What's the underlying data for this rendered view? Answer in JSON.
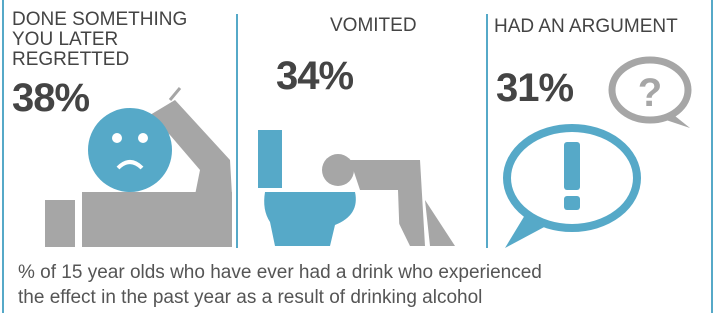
{
  "panels": [
    {
      "label_lines": [
        "DONE SOMETHING",
        "YOU LATER",
        "REGRETTED"
      ],
      "value": "38%"
    },
    {
      "label_lines": [
        "VOMITED"
      ],
      "value": "34%"
    },
    {
      "label_lines": [
        "HAD AN ARGUMENT"
      ],
      "value": "31%"
    }
  ],
  "caption_lines": [
    "% of 15 year olds who have ever had a drink who experienced",
    "the effect in the past year as a result of drinking alcohol"
  ]
}
